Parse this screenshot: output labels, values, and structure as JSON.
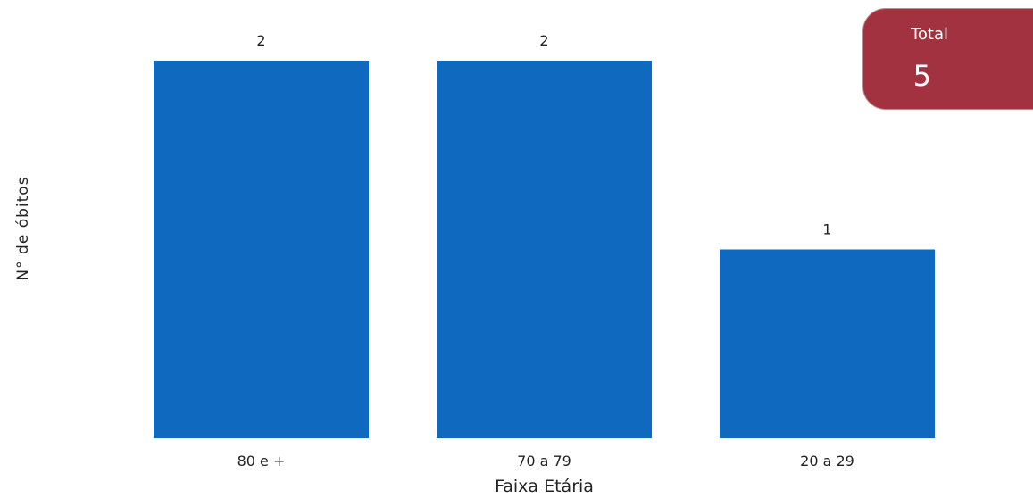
{
  "chart_data": {
    "type": "bar",
    "categories": [
      "80 e +",
      "70 a 79",
      "20 a 29"
    ],
    "values": [
      2,
      2,
      1
    ],
    "xlabel": "Faixa Etária",
    "ylabel": "N° de óbitos",
    "ylim": [
      0,
      2
    ],
    "grid": false,
    "bar_color": "#0f6abf",
    "data_labels": true
  },
  "summary_card": {
    "label": "Total",
    "value": "5",
    "color": "#a33240"
  }
}
